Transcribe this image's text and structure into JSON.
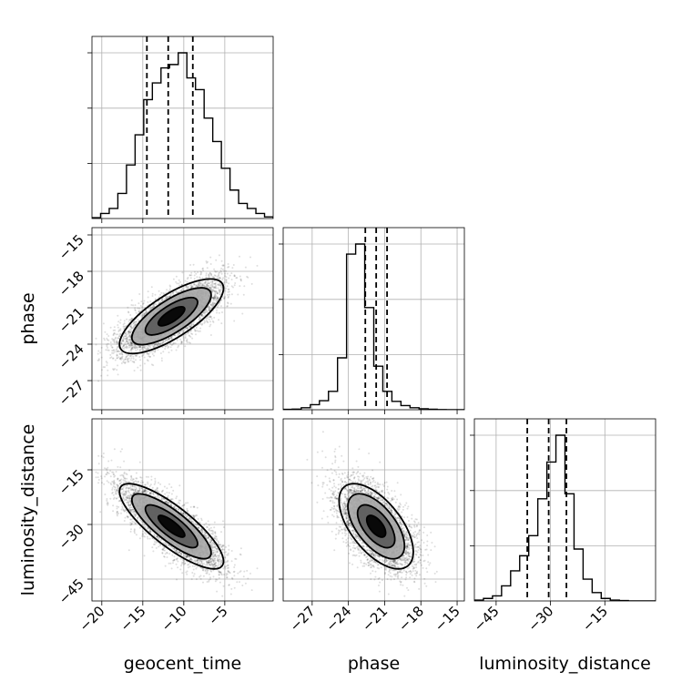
{
  "chart_data": {
    "type": "corner",
    "parameters": [
      "geocent_time",
      "phase",
      "luminosity_distance"
    ],
    "axis_labels": {
      "x": [
        "geocent_time",
        "phase",
        "luminosity_distance"
      ],
      "y": [
        "phase",
        "luminosity_distance"
      ]
    },
    "ranges": {
      "geocent_time": [
        -21.2,
        0.9
      ],
      "phase": [
        -29.4,
        -14.4
      ],
      "luminosity_distance": [
        -51.0,
        -1.0
      ]
    },
    "ticks": {
      "geocent_time": {
        "values": [
          -20,
          -15,
          -10,
          -5
        ],
        "labels": [
          "−20",
          "−15",
          "−10",
          "−5"
        ]
      },
      "phase": {
        "values": [
          -27,
          -24,
          -21,
          -18,
          -15
        ],
        "labels": [
          "−27",
          "−24",
          "−21",
          "−18",
          "−15"
        ]
      },
      "luminosity_distance": {
        "values": [
          -45,
          -30,
          -15
        ],
        "labels": [
          "−45",
          "−30",
          "−15"
        ]
      }
    },
    "quantiles": {
      "geocent_time": [
        -14.5,
        -11.9,
        -8.9
      ],
      "phase": [
        -22.6,
        -21.7,
        -20.8
      ],
      "luminosity_distance": [
        -36.4,
        -30.5,
        -25.6
      ]
    },
    "histograms": {
      "geocent_time": [
        0.005,
        0.03,
        0.06,
        0.15,
        0.32,
        0.5,
        0.71,
        0.81,
        0.9,
        0.92,
        0.99,
        0.84,
        0.77,
        0.6,
        0.46,
        0.3,
        0.17,
        0.09,
        0.06,
        0.03,
        0.01
      ],
      "phase": [
        0.002,
        0.004,
        0.012,
        0.03,
        0.054,
        0.11,
        0.31,
        0.93,
        0.99,
        0.61,
        0.26,
        0.11,
        0.05,
        0.025,
        0.012,
        0.006,
        0.003,
        0.001,
        0.0,
        0.0
      ],
      "luminosity_distance": [
        0.005,
        0.015,
        0.03,
        0.09,
        0.18,
        0.27,
        0.39,
        0.61,
        0.83,
        0.99,
        0.64,
        0.31,
        0.13,
        0.05,
        0.015,
        0.005,
        0.002,
        0.0,
        0.0,
        0.0
      ]
    },
    "samples": {
      "count": 4500,
      "geocent_time": {
        "mean": -11.5,
        "sd": 3.2
      },
      "phase": {
        "mean": -21.7,
        "sd": 1.55
      },
      "luminosity_distance": {
        "mean": -30.5,
        "sd": 5.9
      },
      "correlations": {
        "geocent_time__phase": 0.75,
        "geocent_time__luminosity_distance": -0.82,
        "phase__luminosity_distance": -0.6
      }
    },
    "contour_levels": [
      0.12,
      0.39,
      0.68,
      0.86
    ],
    "grid": true
  }
}
